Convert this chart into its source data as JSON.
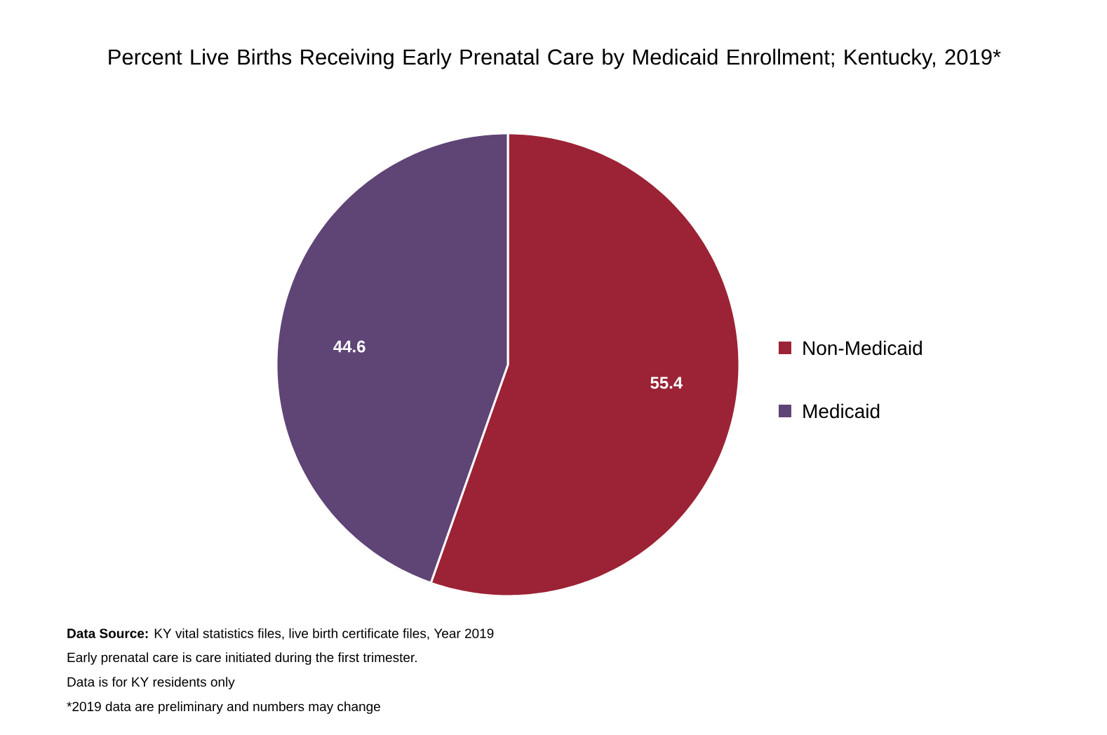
{
  "chart_data": {
    "type": "pie",
    "title": "Percent Live Births Receiving Early Prenatal Care by Medicaid Enrollment; Kentucky, 2019*",
    "categories": [
      "Non-Medicaid",
      "Medicaid"
    ],
    "values": [
      55.4,
      44.6
    ],
    "colors": [
      "#9b2335",
      "#5f4476"
    ],
    "data_labels": true,
    "legend": "right",
    "annotations": [
      "**Data Source:** KY vital statistics files, live birth certificate files, Year 2019",
      "Early prenatal care is care initiated during the first trimester.",
      "Data is for KY residents only",
      "*2019 data are preliminary and numbers may change"
    ]
  }
}
